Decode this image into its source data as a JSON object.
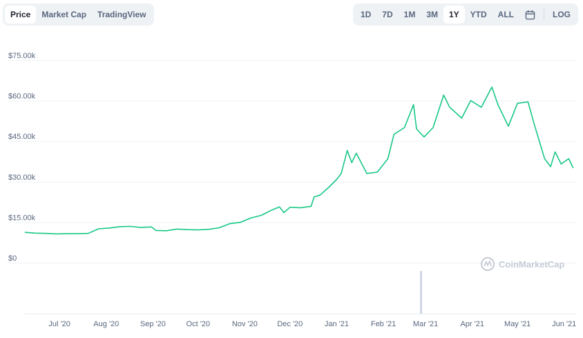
{
  "tabs_left": [
    {
      "label": "Price",
      "active": true
    },
    {
      "label": "Market Cap",
      "active": false
    },
    {
      "label": "TradingView",
      "active": false
    }
  ],
  "ranges": [
    {
      "label": "1D",
      "active": false
    },
    {
      "label": "7D",
      "active": false
    },
    {
      "label": "1M",
      "active": false
    },
    {
      "label": "3M",
      "active": false
    },
    {
      "label": "1Y",
      "active": true
    },
    {
      "label": "YTD",
      "active": false
    },
    {
      "label": "ALL",
      "active": false
    }
  ],
  "calendar_icon": "calendar-icon",
  "log_label": "LOG",
  "watermark": "CoinMarketCap",
  "colors": {
    "line": "#16c784",
    "grid": "#eff2f5",
    "volume": "#cfd6e4"
  },
  "chart_data": {
    "type": "line",
    "x_unit": "date",
    "xlim": [
      "2020-06-08",
      "2021-06-08"
    ],
    "ylim": [
      0,
      75000
    ],
    "y_ticks": [
      {
        "value": 0,
        "label": "$0"
      },
      {
        "value": 15000,
        "label": "$15.00k"
      },
      {
        "value": 30000,
        "label": "$30.00k"
      },
      {
        "value": 45000,
        "label": "$45.00k"
      },
      {
        "value": 60000,
        "label": "$60.00k"
      },
      {
        "value": 75000,
        "label": "$75.00k"
      }
    ],
    "x_ticks": [
      {
        "date": "2020-07-01",
        "label": "Jul '20"
      },
      {
        "date": "2020-08-01",
        "label": "Aug '20"
      },
      {
        "date": "2020-09-01",
        "label": "Sep '20"
      },
      {
        "date": "2020-10-01",
        "label": "Oct '20"
      },
      {
        "date": "2020-11-01",
        "label": "Nov '20"
      },
      {
        "date": "2020-12-01",
        "label": "Dec '20"
      },
      {
        "date": "2021-01-01",
        "label": "Jan '21"
      },
      {
        "date": "2021-02-01",
        "label": "Feb '21"
      },
      {
        "date": "2021-03-01",
        "label": "Mar '21"
      },
      {
        "date": "2021-04-01",
        "label": "Apr '21"
      },
      {
        "date": "2021-05-01",
        "label": "May '21"
      },
      {
        "date": "2021-06-01",
        "label": "Jun '21"
      }
    ],
    "grid": true,
    "series": [
      {
        "points": [
          [
            "2020-06-08",
            9700
          ],
          [
            "2020-06-15",
            9400
          ],
          [
            "2020-06-22",
            9300
          ],
          [
            "2020-06-29",
            9100
          ],
          [
            "2020-07-06",
            9200
          ],
          [
            "2020-07-13",
            9200
          ],
          [
            "2020-07-20",
            9300
          ],
          [
            "2020-07-27",
            11000
          ],
          [
            "2020-08-03",
            11300
          ],
          [
            "2020-08-10",
            11800
          ],
          [
            "2020-08-17",
            11900
          ],
          [
            "2020-08-24",
            11500
          ],
          [
            "2020-08-31",
            11700
          ],
          [
            "2020-09-03",
            10400
          ],
          [
            "2020-09-10",
            10300
          ],
          [
            "2020-09-17",
            10900
          ],
          [
            "2020-09-24",
            10700
          ],
          [
            "2020-10-01",
            10600
          ],
          [
            "2020-10-08",
            10800
          ],
          [
            "2020-10-15",
            11400
          ],
          [
            "2020-10-22",
            12900
          ],
          [
            "2020-10-29",
            13400
          ],
          [
            "2020-11-05",
            15000
          ],
          [
            "2020-11-12",
            16000
          ],
          [
            "2020-11-19",
            18000
          ],
          [
            "2020-11-24",
            19100
          ],
          [
            "2020-11-27",
            17000
          ],
          [
            "2020-12-01",
            19000
          ],
          [
            "2020-12-08",
            18800
          ],
          [
            "2020-12-15",
            19300
          ],
          [
            "2020-12-17",
            22800
          ],
          [
            "2020-12-21",
            23500
          ],
          [
            "2020-12-27",
            26500
          ],
          [
            "2021-01-01",
            29300
          ],
          [
            "2021-01-04",
            31500
          ],
          [
            "2021-01-08",
            40000
          ],
          [
            "2021-01-11",
            35500
          ],
          [
            "2021-01-14",
            39000
          ],
          [
            "2021-01-21",
            31500
          ],
          [
            "2021-01-28",
            32000
          ],
          [
            "2021-02-04",
            37000
          ],
          [
            "2021-02-08",
            46000
          ],
          [
            "2021-02-15",
            48500
          ],
          [
            "2021-02-21",
            57000
          ],
          [
            "2021-02-23",
            48000
          ],
          [
            "2021-02-28",
            45000
          ],
          [
            "2021-03-06",
            48500
          ],
          [
            "2021-03-13",
            60500
          ],
          [
            "2021-03-17",
            56000
          ],
          [
            "2021-03-25",
            52000
          ],
          [
            "2021-03-31",
            58500
          ],
          [
            "2021-04-07",
            56000
          ],
          [
            "2021-04-14",
            63500
          ],
          [
            "2021-04-18",
            57000
          ],
          [
            "2021-04-25",
            49000
          ],
          [
            "2021-05-01",
            57500
          ],
          [
            "2021-05-08",
            58000
          ],
          [
            "2021-05-12",
            50000
          ],
          [
            "2021-05-19",
            37000
          ],
          [
            "2021-05-23",
            34000
          ],
          [
            "2021-05-26",
            39500
          ],
          [
            "2021-05-30",
            35000
          ],
          [
            "2021-06-04",
            37000
          ],
          [
            "2021-06-07",
            33500
          ]
        ]
      }
    ],
    "volume_spike_date": "2021-02-26"
  }
}
